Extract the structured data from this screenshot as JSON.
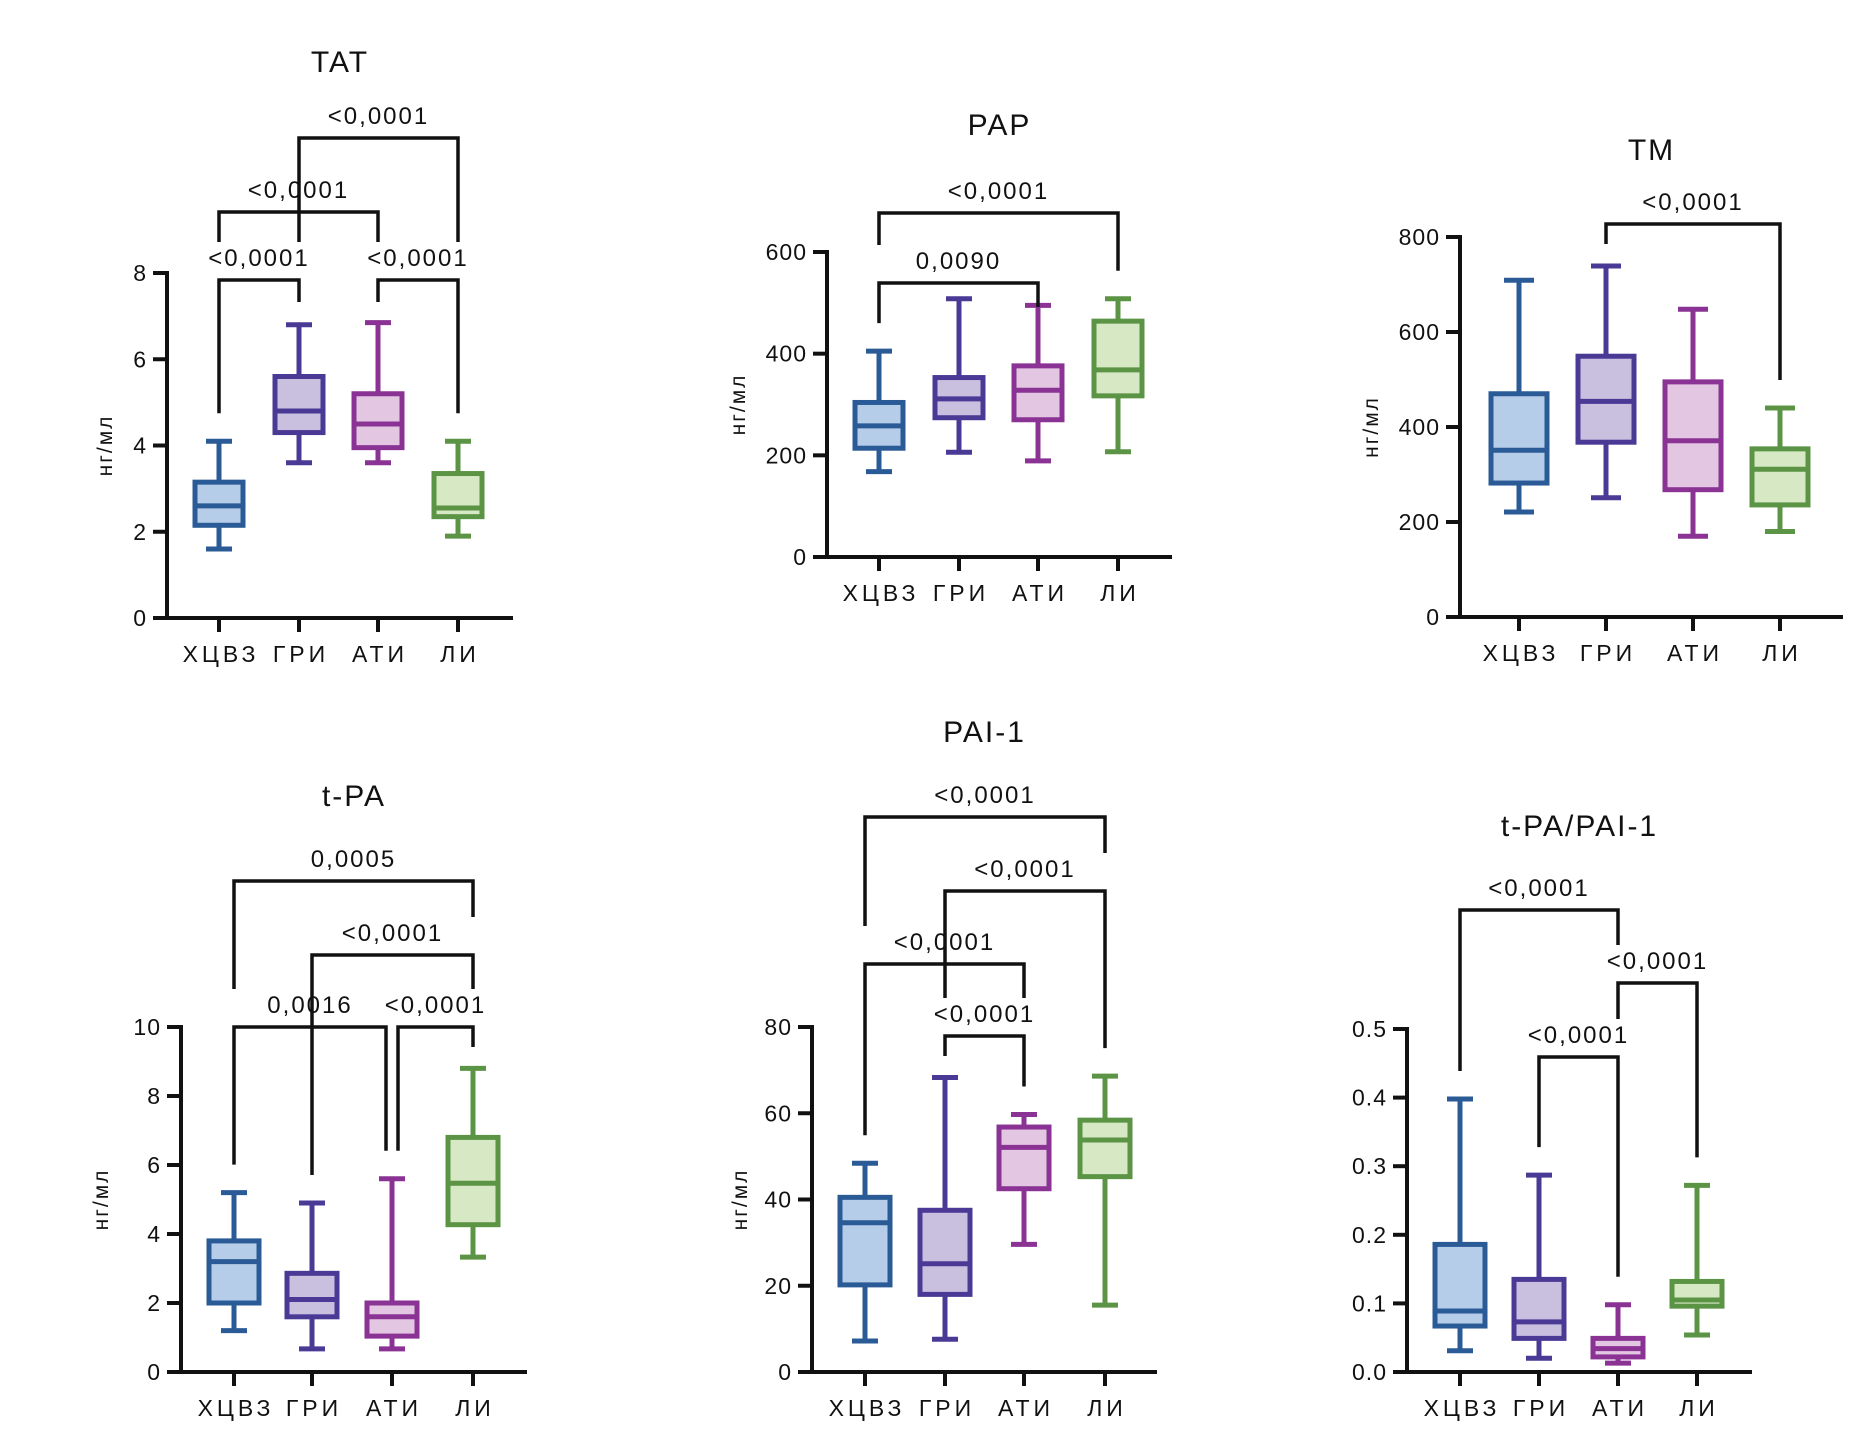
{
  "groups": [
    "ХЦВЗ",
    "ГРИ",
    "АТИ",
    "ЛИ"
  ],
  "group_colors": {
    "stroke": [
      "#2A5B96",
      "#4A3A96",
      "#8A3394",
      "#5B9445"
    ],
    "fill": [
      "#B6CDE9",
      "#C9C0E0",
      "#E3C6E2",
      "#D6E8C4"
    ]
  },
  "chart_data": [
    {
      "type": "boxplot",
      "title": "TAT",
      "ylabel": "нг/мл",
      "xlabel": "",
      "categories": [
        "ХЦВЗ",
        "ГРИ",
        "АТИ",
        "ЛИ"
      ],
      "ylim": [
        0,
        8
      ],
      "yticks": [
        0,
        2,
        4,
        6,
        8
      ],
      "ytick_labels": [
        "0",
        "2",
        "4",
        "6",
        "8"
      ],
      "grid": false,
      "boxes": [
        {
          "min": 1.6,
          "q1": 2.15,
          "median": 2.6,
          "q3": 3.15,
          "max": 4.1
        },
        {
          "min": 3.6,
          "q1": 4.3,
          "median": 4.8,
          "q3": 5.6,
          "max": 6.8
        },
        {
          "min": 3.6,
          "q1": 3.95,
          "median": 4.5,
          "q3": 5.2,
          "max": 6.85
        },
        {
          "min": 1.9,
          "q1": 2.35,
          "median": 2.55,
          "q3": 3.35,
          "max": 4.1
        }
      ],
      "comparisons": [
        {
          "from": 0,
          "to": 1,
          "p": "<0,0001",
          "level": 0
        },
        {
          "from": 2,
          "to": 3,
          "p": "<0,0001",
          "level": 0
        },
        {
          "from": 0,
          "to": 2,
          "p": "<0,0001",
          "level": 1
        },
        {
          "from": 1,
          "to": 3,
          "p": "<0,0001",
          "level": 2
        }
      ]
    },
    {
      "type": "boxplot",
      "title": "PAP",
      "ylabel": "нг/мл",
      "xlabel": "",
      "categories": [
        "ХЦВЗ",
        "ГРИ",
        "АТИ",
        "ЛИ"
      ],
      "ylim": [
        0,
        600
      ],
      "yticks": [
        0,
        200,
        400,
        600
      ],
      "ytick_labels": [
        "0",
        "200",
        "400",
        "600"
      ],
      "grid": false,
      "boxes": [
        {
          "min": 168,
          "q1": 214,
          "median": 258,
          "q3": 304,
          "max": 405
        },
        {
          "min": 206,
          "q1": 274,
          "median": 311,
          "q3": 353,
          "max": 508
        },
        {
          "min": 189,
          "q1": 270,
          "median": 328,
          "q3": 376,
          "max": 495
        },
        {
          "min": 207,
          "q1": 317,
          "median": 368,
          "q3": 464,
          "max": 508
        }
      ],
      "comparisons": [
        {
          "from": 0,
          "to": 2,
          "p": "0,0090",
          "level": 0
        },
        {
          "from": 0,
          "to": 3,
          "p": "<0,0001",
          "level": 1
        }
      ]
    },
    {
      "type": "boxplot",
      "title": "TM",
      "ylabel": "нг/мл",
      "xlabel": "",
      "categories": [
        "ХЦВЗ",
        "ГРИ",
        "АТИ",
        "ЛИ"
      ],
      "ylim": [
        0,
        800
      ],
      "yticks": [
        0,
        200,
        400,
        600,
        800
      ],
      "ytick_labels": [
        "0",
        "200",
        "400",
        "600",
        "800"
      ],
      "grid": false,
      "boxes": [
        {
          "min": 221,
          "q1": 282,
          "median": 351,
          "q3": 470,
          "max": 709
        },
        {
          "min": 251,
          "q1": 368,
          "median": 454,
          "q3": 549,
          "max": 739
        },
        {
          "min": 170,
          "q1": 268,
          "median": 371,
          "q3": 495,
          "max": 648
        },
        {
          "min": 180,
          "q1": 236,
          "median": 311,
          "q3": 354,
          "max": 440
        }
      ],
      "comparisons": [
        {
          "from": 1,
          "to": 3,
          "p": "<0,0001",
          "level": 0
        }
      ]
    },
    {
      "type": "boxplot",
      "title": "t-PA",
      "ylabel": "нг/мл",
      "xlabel": "",
      "categories": [
        "ХЦВЗ",
        "ГРИ",
        "АТИ",
        "ЛИ"
      ],
      "ylim": [
        0,
        10
      ],
      "yticks": [
        0,
        2,
        4,
        6,
        8,
        10
      ],
      "ytick_labels": [
        "0",
        "2",
        "4",
        "6",
        "8",
        "10"
      ],
      "grid": false,
      "boxes": [
        {
          "min": 1.2,
          "q1": 2.0,
          "median": 3.2,
          "q3": 3.8,
          "max": 5.2
        },
        {
          "min": 0.67,
          "q1": 1.6,
          "median": 2.1,
          "q3": 2.86,
          "max": 4.9
        },
        {
          "min": 0.67,
          "q1": 1.04,
          "median": 1.6,
          "q3": 2.0,
          "max": 5.6
        },
        {
          "min": 3.33,
          "q1": 4.27,
          "median": 5.47,
          "q3": 6.8,
          "max": 8.8
        }
      ],
      "comparisons": [
        {
          "from": 0,
          "to": 2,
          "p": "0,0016",
          "level": 0
        },
        {
          "from": 2,
          "to": 3,
          "p": "<0,0001",
          "level": 0
        },
        {
          "from": 1,
          "to": 3,
          "p": "<0,0001",
          "level": 1
        },
        {
          "from": 0,
          "to": 3,
          "p": "0,0005",
          "level": 2
        }
      ]
    },
    {
      "type": "boxplot",
      "title": "PAI-1",
      "ylabel": "нг/мл",
      "xlabel": "",
      "categories": [
        "ХЦВЗ",
        "ГРИ",
        "АТИ",
        "ЛИ"
      ],
      "ylim": [
        0,
        80
      ],
      "yticks": [
        0,
        20,
        40,
        60,
        80
      ],
      "ytick_labels": [
        "0",
        "20",
        "40",
        "60",
        "80"
      ],
      "grid": false,
      "boxes": [
        {
          "min": 7.2,
          "q1": 20.2,
          "median": 34.6,
          "q3": 40.5,
          "max": 48.4
        },
        {
          "min": 7.6,
          "q1": 18.0,
          "median": 25.1,
          "q3": 37.5,
          "max": 68.3
        },
        {
          "min": 29.6,
          "q1": 42.5,
          "median": 52.1,
          "q3": 56.8,
          "max": 59.7
        },
        {
          "min": 15.5,
          "q1": 45.3,
          "median": 53.8,
          "q3": 58.4,
          "max": 68.6
        }
      ],
      "comparisons": [
        {
          "from": 1,
          "to": 2,
          "p": "<0,0001",
          "level": 0
        },
        {
          "from": 0,
          "to": 2,
          "p": "<0,0001",
          "level": 1
        },
        {
          "from": 1,
          "to": 3,
          "p": "<0,0001",
          "level": 2
        },
        {
          "from": 0,
          "to": 3,
          "p": "<0,0001",
          "level": 3
        }
      ]
    },
    {
      "type": "boxplot",
      "title": "t-PA/PAI-1",
      "ylabel": "",
      "xlabel": "",
      "categories": [
        "ХЦВЗ",
        "ГРИ",
        "АТИ",
        "ЛИ"
      ],
      "ylim": [
        0,
        0.5
      ],
      "yticks": [
        0,
        0.1,
        0.2,
        0.3,
        0.4,
        0.5
      ],
      "ytick_labels": [
        "0.0",
        "0.1",
        "0.2",
        "0.3",
        "0.4",
        "0.5"
      ],
      "grid": false,
      "boxes": [
        {
          "min": 0.031,
          "q1": 0.067,
          "median": 0.089,
          "q3": 0.186,
          "max": 0.398
        },
        {
          "min": 0.02,
          "q1": 0.049,
          "median": 0.073,
          "q3": 0.135,
          "max": 0.287
        },
        {
          "min": 0.013,
          "q1": 0.022,
          "median": 0.034,
          "q3": 0.049,
          "max": 0.098
        },
        {
          "min": 0.054,
          "q1": 0.096,
          "median": 0.105,
          "q3": 0.132,
          "max": 0.272
        }
      ],
      "comparisons": [
        {
          "from": 1,
          "to": 2,
          "p": "<0,0001",
          "level": 0
        },
        {
          "from": 2,
          "to": 3,
          "p": "<0,0001",
          "level": 1
        },
        {
          "from": 0,
          "to": 2,
          "p": "<0,0001",
          "level": 2
        }
      ]
    }
  ]
}
